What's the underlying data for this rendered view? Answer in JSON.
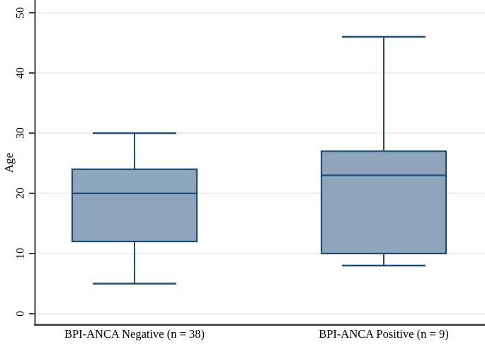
{
  "figure": {
    "background": "#ffffff"
  },
  "chart_data": {
    "type": "boxplot",
    "title": "",
    "xlabel": "",
    "ylabel": "Age",
    "categories": [
      "BPI-ANCA Negative (n = 38)",
      "BPI-ANCA Positive (n = 9)"
    ],
    "yticks": [
      "0",
      "10",
      "20",
      "30",
      "40",
      "50"
    ],
    "ytick_values": [
      0,
      10,
      20,
      30,
      40,
      50
    ],
    "ylim": [
      -2,
      52
    ],
    "grid": "horizontal",
    "tick_label_rotation": -90,
    "legend": "none",
    "series": [
      {
        "name": "BPI-ANCA Negative (n = 38)",
        "n": 38,
        "lower_whisker": 5,
        "q1": 12,
        "median": 20,
        "q3": 24,
        "upper_whisker": 30
      },
      {
        "name": "BPI-ANCA Positive (n = 9)",
        "n": 9,
        "lower_whisker": 8,
        "q1": 10,
        "median": 23,
        "q3": 27,
        "upper_whisker": 46
      }
    ],
    "colors": {
      "box_fill": "#8ea6bb",
      "box_border": "#1f4d75",
      "whisker": "#1f4d75",
      "median": "#1f4d75",
      "gridline": "#e9f1f7",
      "axis": "#3f3f3f",
      "text": "#000000",
      "background": "#ffffff"
    }
  }
}
